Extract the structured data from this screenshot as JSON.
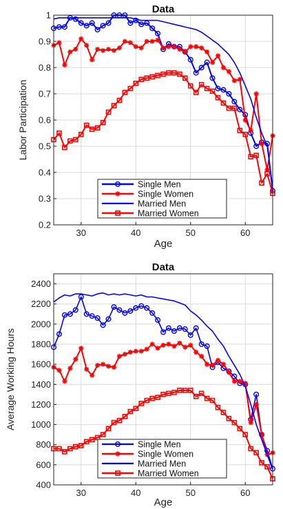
{
  "chart_data": [
    {
      "type": "line",
      "title": "Data",
      "xlabel": "Age",
      "ylabel": "Labor Participation",
      "xlim": [
        25,
        65
      ],
      "ylim": [
        0.2,
        1.0
      ],
      "xticks": [
        30,
        40,
        50,
        60
      ],
      "yticks": [
        0.2,
        0.3,
        0.4,
        0.5,
        0.6,
        0.7,
        0.8,
        0.9,
        1.0
      ],
      "ytick_labels": [
        "0.2",
        "0.3",
        "0.4",
        "0.5",
        "0.6",
        "0.7",
        "0.8",
        "0.9",
        "1"
      ],
      "grid": true,
      "legend_position": "bottom-center",
      "x": [
        25,
        26,
        27,
        28,
        29,
        30,
        31,
        32,
        33,
        34,
        35,
        36,
        37,
        38,
        39,
        40,
        41,
        42,
        43,
        44,
        45,
        46,
        47,
        48,
        49,
        50,
        51,
        52,
        53,
        54,
        55,
        56,
        57,
        58,
        59,
        60,
        61,
        62,
        63,
        64,
        65
      ],
      "series": [
        {
          "name": "Single Men",
          "color": "#0000ff",
          "marker": "circle",
          "width": 2,
          "values": [
            0.95,
            0.955,
            0.955,
            0.99,
            0.985,
            0.97,
            0.96,
            0.97,
            0.945,
            0.96,
            0.97,
            1.0,
            1.0,
            1.0,
            0.97,
            0.98,
            0.965,
            0.97,
            0.95,
            0.93,
            0.87,
            0.89,
            0.88,
            0.88,
            0.86,
            0.83,
            0.78,
            0.8,
            0.82,
            0.76,
            0.72,
            0.715,
            0.7,
            0.67,
            0.64,
            0.62,
            0.55,
            0.5,
            0.515,
            0.51,
            0.33
          ]
        },
        {
          "name": "Single Women",
          "color": "#ff0000",
          "marker": "star",
          "width": 2,
          "values": [
            0.885,
            0.895,
            0.81,
            0.86,
            0.87,
            0.91,
            0.885,
            0.83,
            0.87,
            0.865,
            0.87,
            0.865,
            0.875,
            0.9,
            0.895,
            0.88,
            0.875,
            0.9,
            0.9,
            0.905,
            0.875,
            0.88,
            0.88,
            0.87,
            0.86,
            0.88,
            0.88,
            0.875,
            0.86,
            0.82,
            0.845,
            0.8,
            0.785,
            0.75,
            0.755,
            0.6,
            0.56,
            0.7,
            0.51,
            0.41,
            0.54
          ]
        },
        {
          "name": "Married Men",
          "color": "#0000ff",
          "marker": "none",
          "width": 1.6,
          "values": [
            0.985,
            0.99,
            0.99,
            0.99,
            0.99,
            0.99,
            0.99,
            0.99,
            0.99,
            0.99,
            0.99,
            0.99,
            0.99,
            0.99,
            0.99,
            0.985,
            0.98,
            0.98,
            0.98,
            0.98,
            0.975,
            0.97,
            0.965,
            0.96,
            0.955,
            0.95,
            0.945,
            0.935,
            0.92,
            0.905,
            0.89,
            0.87,
            0.85,
            0.82,
            0.78,
            0.73,
            0.68,
            0.61,
            0.55,
            0.5,
            0.34
          ]
        },
        {
          "name": "Married Women",
          "color": "#ff0000",
          "marker": "square",
          "width": 2,
          "values": [
            0.525,
            0.55,
            0.495,
            0.52,
            0.525,
            0.545,
            0.58,
            0.565,
            0.57,
            0.59,
            0.63,
            0.655,
            0.675,
            0.705,
            0.72,
            0.74,
            0.755,
            0.76,
            0.765,
            0.77,
            0.775,
            0.78,
            0.78,
            0.775,
            0.76,
            0.73,
            0.705,
            0.735,
            0.72,
            0.71,
            0.685,
            0.665,
            0.645,
            0.645,
            0.56,
            0.545,
            0.46,
            0.465,
            0.36,
            0.395,
            0.32
          ]
        }
      ]
    },
    {
      "type": "line",
      "title": "Data",
      "xlabel": "Age",
      "ylabel": "Average Working Hours",
      "xlim": [
        25,
        65
      ],
      "ylim": [
        400,
        2500
      ],
      "xticks": [
        30,
        40,
        50,
        60
      ],
      "yticks": [
        400,
        600,
        800,
        1000,
        1200,
        1400,
        1600,
        1800,
        2000,
        2200,
        2400
      ],
      "ytick_labels": [
        "400",
        "600",
        "800",
        "1000",
        "1200",
        "1400",
        "1600",
        "1800",
        "2000",
        "2200",
        "2400"
      ],
      "grid": true,
      "legend_position": "bottom-center",
      "x": [
        25,
        26,
        27,
        28,
        29,
        30,
        31,
        32,
        33,
        34,
        35,
        36,
        37,
        38,
        39,
        40,
        41,
        42,
        43,
        44,
        45,
        46,
        47,
        48,
        49,
        50,
        51,
        52,
        53,
        54,
        55,
        56,
        57,
        58,
        59,
        60,
        61,
        62,
        63,
        64,
        65
      ],
      "series": [
        {
          "name": "Single Men",
          "color": "#0000ff",
          "marker": "circle",
          "width": 1.6,
          "values": [
            1770,
            1900,
            2090,
            2100,
            2140,
            2270,
            2100,
            2080,
            2060,
            1990,
            2050,
            2170,
            2140,
            2110,
            2130,
            2160,
            2180,
            2160,
            2110,
            2040,
            1920,
            1960,
            1930,
            1960,
            1950,
            1890,
            1960,
            1800,
            1780,
            1570,
            1620,
            1560,
            1530,
            1480,
            1410,
            1400,
            1050,
            1300,
            900,
            740,
            560
          ]
        },
        {
          "name": "Single Women",
          "color": "#ff0000",
          "marker": "star",
          "width": 2,
          "values": [
            1570,
            1540,
            1430,
            1560,
            1650,
            1760,
            1550,
            1490,
            1590,
            1600,
            1580,
            1570,
            1680,
            1700,
            1720,
            1730,
            1730,
            1750,
            1800,
            1760,
            1790,
            1800,
            1780,
            1810,
            1770,
            1790,
            1720,
            1680,
            1600,
            1590,
            1640,
            1600,
            1520,
            1430,
            1430,
            1410,
            1020,
            1200,
            900,
            700,
            720
          ]
        },
        {
          "name": "Married Men",
          "color": "#0000ff",
          "marker": "none",
          "width": 1.6,
          "values": [
            2220,
            2260,
            2290,
            2280,
            2300,
            2300,
            2290,
            2280,
            2300,
            2310,
            2290,
            2300,
            2290,
            2300,
            2290,
            2280,
            2290,
            2270,
            2270,
            2260,
            2250,
            2240,
            2230,
            2210,
            2190,
            2130,
            2090,
            2040,
            1980,
            1930,
            1850,
            1780,
            1680,
            1590,
            1500,
            1380,
            1200,
            1000,
            850,
            700,
            550
          ]
        },
        {
          "name": "Married Women",
          "color": "#ff0000",
          "marker": "square",
          "width": 2,
          "values": [
            760,
            760,
            730,
            760,
            780,
            790,
            830,
            850,
            870,
            900,
            960,
            1020,
            1040,
            1080,
            1130,
            1160,
            1210,
            1240,
            1260,
            1270,
            1300,
            1310,
            1320,
            1340,
            1340,
            1340,
            1280,
            1310,
            1260,
            1240,
            1170,
            1120,
            1060,
            1020,
            960,
            900,
            760,
            720,
            620,
            580,
            460
          ]
        }
      ]
    }
  ]
}
